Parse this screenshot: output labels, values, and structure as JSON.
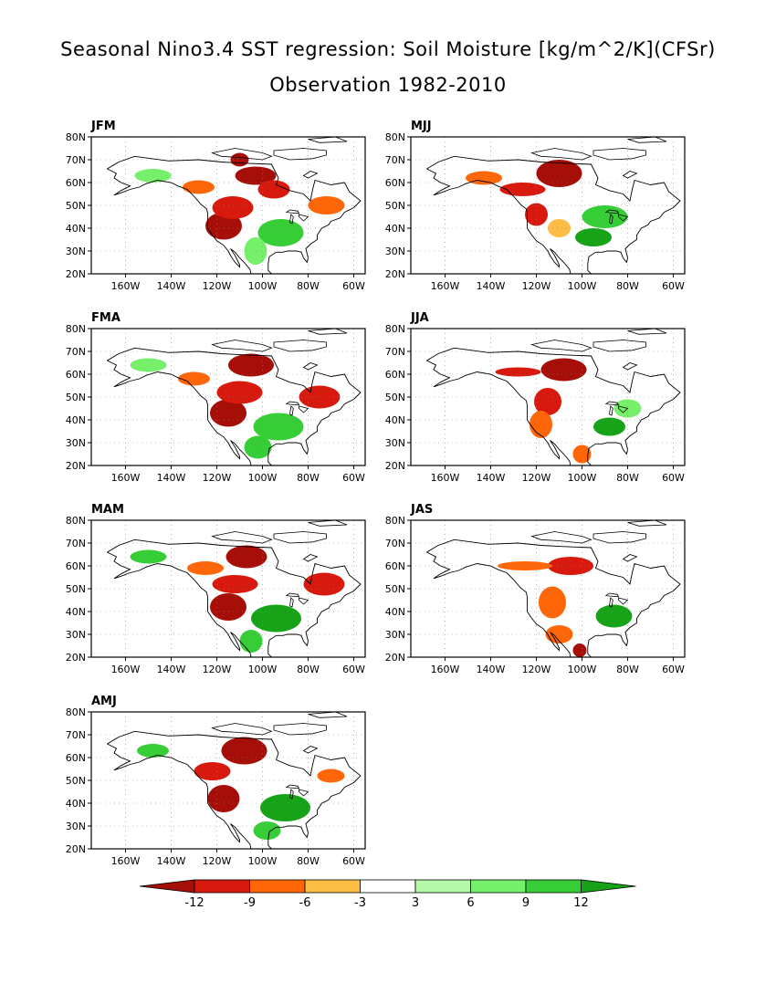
{
  "title": "Seasonal Nino3.4 SST regression: Soil Moisture [kg/m^2/K](CFSr)",
  "subtitle": "Observation 1982-2010",
  "chart_data": {
    "type": "heatmap",
    "variable": "Soil Moisture regression on Nino3.4 SST",
    "units": "kg/m^2/K",
    "lon_ticks": [
      "160W",
      "140W",
      "120W",
      "100W",
      "80W",
      "60W"
    ],
    "lat_ticks": [
      "20N",
      "30N",
      "40N",
      "50N",
      "60N",
      "70N",
      "80N"
    ],
    "lon_range": [
      -175,
      -55
    ],
    "lat_range": [
      20,
      80
    ],
    "grid": true,
    "colorbar": {
      "levels": [
        -12,
        -9,
        -6,
        -3,
        3,
        6,
        9,
        12
      ],
      "tick_labels": [
        "-12",
        "-9",
        "-6",
        "-3",
        "3",
        "6",
        "9",
        "12"
      ],
      "colors": [
        "#a50f08",
        "#d7190e",
        "#fe6608",
        "#fdbd44",
        "#ffffff",
        "#b4f9a7",
        "#76ef6b",
        "#37cd37",
        "#17a317"
      ],
      "placement": "bottom"
    },
    "panels": [
      {
        "season": "JFM"
      },
      {
        "season": "MJJ"
      },
      {
        "season": "FMA"
      },
      {
        "season": "JJA"
      },
      {
        "season": "MAM"
      },
      {
        "season": "JAS"
      },
      {
        "season": "AMJ"
      }
    ],
    "features": {
      "JFM": [
        {
          "lon": -117,
          "lat": 41,
          "rx": 8,
          "ry": 6,
          "level": -12
        },
        {
          "lon": -103,
          "lat": 63,
          "rx": 9,
          "ry": 4,
          "level": -12
        },
        {
          "lon": -110,
          "lat": 70,
          "rx": 4,
          "ry": 3,
          "level": -12
        },
        {
          "lon": -113,
          "lat": 49,
          "rx": 9,
          "ry": 5,
          "level": -9
        },
        {
          "lon": -95,
          "lat": 57,
          "rx": 7,
          "ry": 4,
          "level": -9
        },
        {
          "lon": -128,
          "lat": 58,
          "rx": 7,
          "ry": 3,
          "level": -6
        },
        {
          "lon": -72,
          "lat": 50,
          "rx": 8,
          "ry": 4,
          "level": -6
        },
        {
          "lon": -148,
          "lat": 63,
          "rx": 8,
          "ry": 3,
          "level": 6
        },
        {
          "lon": -92,
          "lat": 38,
          "rx": 10,
          "ry": 6,
          "level": 9
        },
        {
          "lon": -103,
          "lat": 30,
          "rx": 5,
          "ry": 6,
          "level": 6
        }
      ],
      "MJJ": [
        {
          "lon": -110,
          "lat": 64,
          "rx": 10,
          "ry": 6,
          "level": -12
        },
        {
          "lon": -120,
          "lat": 46,
          "rx": 5,
          "ry": 5,
          "level": -9
        },
        {
          "lon": -126,
          "lat": 57,
          "rx": 10,
          "ry": 3,
          "level": -9
        },
        {
          "lon": -143,
          "lat": 62,
          "rx": 8,
          "ry": 3,
          "level": -6
        },
        {
          "lon": -90,
          "lat": 45,
          "rx": 10,
          "ry": 5,
          "level": 9
        },
        {
          "lon": -95,
          "lat": 36,
          "rx": 8,
          "ry": 4,
          "level": 12
        },
        {
          "lon": -110,
          "lat": 40,
          "rx": 5,
          "ry": 4,
          "level": -3
        }
      ],
      "FMA": [
        {
          "lon": -115,
          "lat": 43,
          "rx": 8,
          "ry": 6,
          "level": -12
        },
        {
          "lon": -105,
          "lat": 64,
          "rx": 10,
          "ry": 5,
          "level": -12
        },
        {
          "lon": -110,
          "lat": 52,
          "rx": 10,
          "ry": 5,
          "level": -9
        },
        {
          "lon": -75,
          "lat": 50,
          "rx": 9,
          "ry": 5,
          "level": -9
        },
        {
          "lon": -130,
          "lat": 58,
          "rx": 7,
          "ry": 3,
          "level": -6
        },
        {
          "lon": -93,
          "lat": 37,
          "rx": 11,
          "ry": 6,
          "level": 9
        },
        {
          "lon": -102,
          "lat": 28,
          "rx": 6,
          "ry": 5,
          "level": 9
        },
        {
          "lon": -150,
          "lat": 64,
          "rx": 8,
          "ry": 3,
          "level": 6
        }
      ],
      "JJA": [
        {
          "lon": -108,
          "lat": 62,
          "rx": 10,
          "ry": 5,
          "level": -12
        },
        {
          "lon": -115,
          "lat": 48,
          "rx": 6,
          "ry": 6,
          "level": -9
        },
        {
          "lon": -128,
          "lat": 61,
          "rx": 10,
          "ry": 2,
          "level": -9
        },
        {
          "lon": -118,
          "lat": 38,
          "rx": 5,
          "ry": 6,
          "level": -6
        },
        {
          "lon": -88,
          "lat": 37,
          "rx": 7,
          "ry": 4,
          "level": 12
        },
        {
          "lon": -100,
          "lat": 25,
          "rx": 4,
          "ry": 4,
          "level": -6
        },
        {
          "lon": -80,
          "lat": 45,
          "rx": 6,
          "ry": 4,
          "level": 6
        }
      ],
      "MAM": [
        {
          "lon": -115,
          "lat": 42,
          "rx": 8,
          "ry": 6,
          "level": -12
        },
        {
          "lon": -107,
          "lat": 64,
          "rx": 9,
          "ry": 5,
          "level": -12
        },
        {
          "lon": -112,
          "lat": 52,
          "rx": 10,
          "ry": 4,
          "level": -9
        },
        {
          "lon": -73,
          "lat": 52,
          "rx": 9,
          "ry": 5,
          "level": -9
        },
        {
          "lon": -94,
          "lat": 37,
          "rx": 11,
          "ry": 6,
          "level": 12
        },
        {
          "lon": -105,
          "lat": 27,
          "rx": 5,
          "ry": 5,
          "level": 9
        },
        {
          "lon": -150,
          "lat": 64,
          "rx": 8,
          "ry": 3,
          "level": 9
        },
        {
          "lon": -125,
          "lat": 59,
          "rx": 8,
          "ry": 3,
          "level": -6
        }
      ],
      "JAS": [
        {
          "lon": -105,
          "lat": 60,
          "rx": 10,
          "ry": 4,
          "level": -9
        },
        {
          "lon": -125,
          "lat": 60,
          "rx": 12,
          "ry": 2,
          "level": -6
        },
        {
          "lon": -113,
          "lat": 44,
          "rx": 6,
          "ry": 7,
          "level": -6
        },
        {
          "lon": -86,
          "lat": 38,
          "rx": 8,
          "ry": 5,
          "level": 12
        },
        {
          "lon": -101,
          "lat": 23,
          "rx": 3,
          "ry": 3,
          "level": -12
        },
        {
          "lon": -110,
          "lat": 30,
          "rx": 6,
          "ry": 4,
          "level": -6
        }
      ],
      "AMJ": [
        {
          "lon": -108,
          "lat": 63,
          "rx": 10,
          "ry": 6,
          "level": -12
        },
        {
          "lon": -117,
          "lat": 42,
          "rx": 7,
          "ry": 6,
          "level": -12
        },
        {
          "lon": -122,
          "lat": 54,
          "rx": 8,
          "ry": 4,
          "level": -9
        },
        {
          "lon": -90,
          "lat": 38,
          "rx": 11,
          "ry": 6,
          "level": 12
        },
        {
          "lon": -98,
          "lat": 28,
          "rx": 6,
          "ry": 4,
          "level": 9
        },
        {
          "lon": -148,
          "lat": 63,
          "rx": 7,
          "ry": 3,
          "level": 9
        },
        {
          "lon": -70,
          "lat": 52,
          "rx": 6,
          "ry": 3,
          "level": -6
        }
      ]
    }
  }
}
